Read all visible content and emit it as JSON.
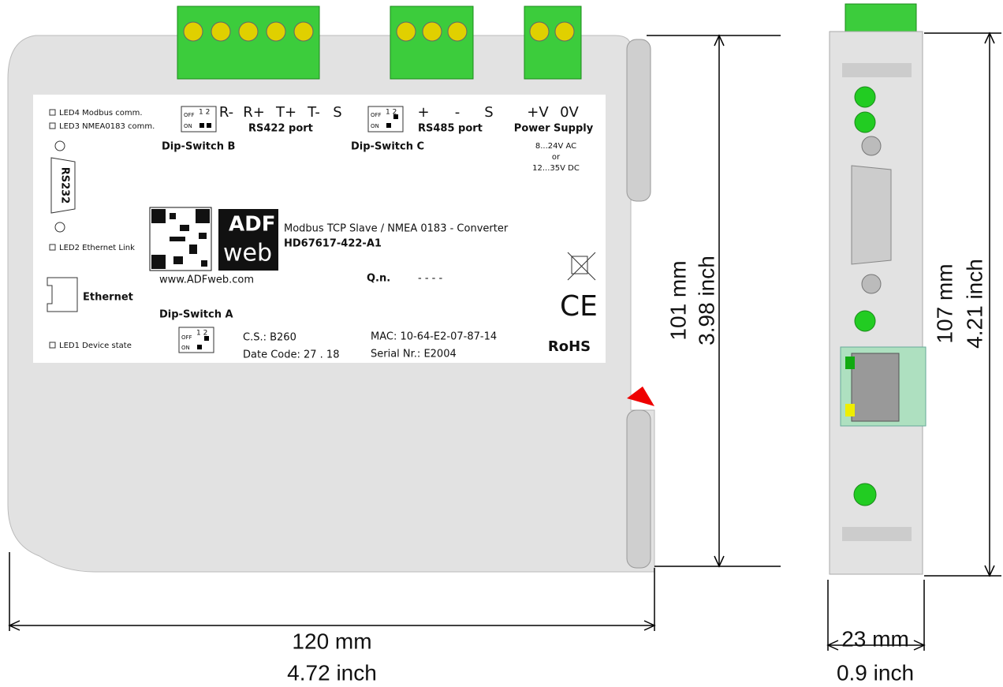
{
  "front_panel": {
    "leds": [
      "LED4 Modbus comm.",
      "LED3 NMEA0183 comm.",
      "LED2 Ethernet Link",
      "LED1 Device state"
    ],
    "rs232": "RS232",
    "ethernet": "Ethernet",
    "dip_switches": [
      "Dip-Switch B",
      "Dip-Switch C",
      "Dip-Switch A"
    ],
    "dip_labels": {
      "off": "OFF",
      "on": "ON",
      "positions": "1 2"
    },
    "rs422_terminals": [
      "R-",
      "R+",
      "T+",
      "T-",
      "S"
    ],
    "rs422_port": "RS422 port",
    "rs485_terminals": [
      "+",
      "-",
      "S"
    ],
    "rs485_port": "RS485 port",
    "power_terminals": [
      "+V",
      "0V"
    ],
    "power_supply": "Power Supply",
    "power_specs": [
      "8...24V AC",
      "or",
      "12...35V DC"
    ],
    "logo": [
      "ADF",
      "web"
    ],
    "product_name": "Modbus TCP Slave / NMEA 0183 - Converter",
    "model": "HD67617-422-A1",
    "url": "www.ADFweb.com",
    "qn_label": "Q.n.",
    "qn_value": "- - - -",
    "cs": "C.S.: B260",
    "date_code": "Date Code: 27 . 18",
    "mac": "MAC: 10-64-E2-07-87-14",
    "serial": "Serial Nr.: E2004",
    "ce": "CE",
    "rohs": "RoHS"
  },
  "dimensions": {
    "front_height": [
      "101 mm",
      "3.98 inch"
    ],
    "front_width": [
      "120 mm",
      "4.72 inch"
    ],
    "side_height": [
      "107 mm",
      "4.21 inch"
    ],
    "side_width": [
      "23 mm",
      "0.9 inch"
    ]
  }
}
